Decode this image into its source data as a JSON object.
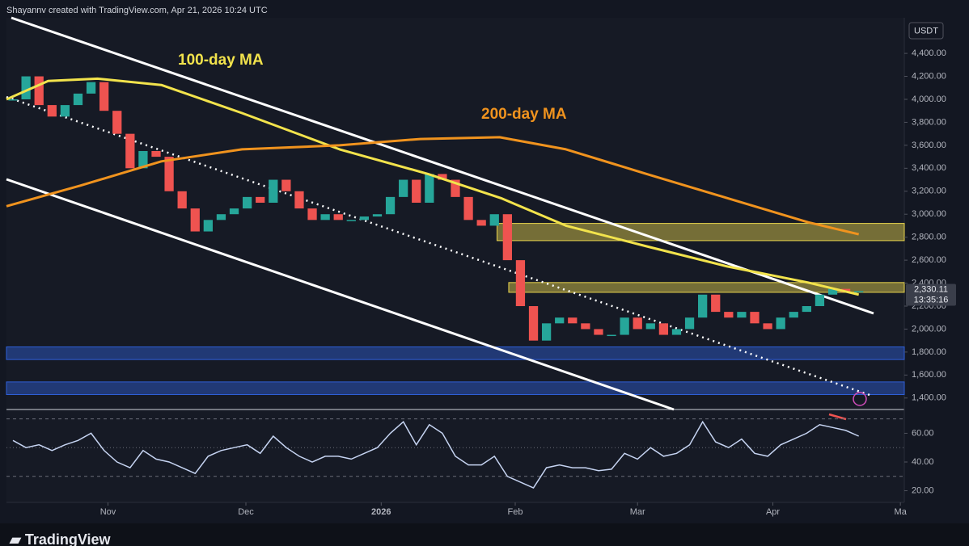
{
  "header": {
    "attribution": "Shayannv created with TradingView.com, Apr 21, 2026 10:24 UTC"
  },
  "chart_data": [
    {
      "type": "candlestick",
      "currency": "USDT",
      "xlim": [
        -0.5,
        68.5
      ],
      "xticks": [
        {
          "value": 7.3,
          "label": "Nov"
        },
        {
          "value": 17.9,
          "label": "Dec"
        },
        {
          "value": 28.3,
          "label": "2026"
        },
        {
          "value": 38.6,
          "label": "Feb"
        },
        {
          "value": 48.0,
          "label": "Mar"
        },
        {
          "value": 58.4,
          "label": "Apr"
        },
        {
          "value": 68.2,
          "label": "Ma"
        }
      ],
      "ylim": [
        1300,
        4710
      ],
      "yticks": [
        {
          "value": 1400,
          "label": "1,400.00"
        },
        {
          "value": 1600,
          "label": "1,600.00"
        },
        {
          "value": 1800,
          "label": "1,800.00"
        },
        {
          "value": 2000,
          "label": "2,000.00"
        },
        {
          "value": 2200,
          "label": "2,200.00"
        },
        {
          "value": 2400,
          "label": "2,400.00"
        },
        {
          "value": 2600,
          "label": "2,600.00"
        },
        {
          "value": 2800,
          "label": "2,800.00"
        },
        {
          "value": 3000,
          "label": "3,000.00"
        },
        {
          "value": 3200,
          "label": "3,200.00"
        },
        {
          "value": 3400,
          "label": "3,400.00"
        },
        {
          "value": 3600,
          "label": "3,600.00"
        },
        {
          "value": 3800,
          "label": "3,800.00"
        },
        {
          "value": 4000,
          "label": "4,000.00"
        },
        {
          "value": 4200,
          "label": "4,200.00"
        },
        {
          "value": 4400,
          "label": "4,400.00"
        }
      ],
      "values": [
        4000,
        4200,
        3950,
        3850,
        3950,
        4050,
        4150,
        3900,
        3700,
        3400,
        3550,
        3500,
        3200,
        3050,
        2850,
        2950,
        3000,
        3050,
        3150,
        3100,
        3300,
        3200,
        3050,
        2950,
        3000,
        2950,
        2950,
        2980,
        3000,
        3150,
        3300,
        3100,
        3350,
        3300,
        3150,
        2950,
        2900,
        3000,
        2600,
        2200,
        1900,
        2050,
        2100,
        2050,
        2000,
        1950,
        1950,
        2100,
        2000,
        2050,
        1950,
        2000,
        2100,
        2300,
        2150,
        2100,
        2150,
        2050,
        2000,
        2100,
        2150,
        2200,
        2300,
        2350,
        2320,
        2330.11
      ],
      "up_color": "#26a69a",
      "down_color": "#ef5350",
      "series": [
        {
          "name": "100-day MA",
          "color": "#f2e34c",
          "x": [
            -0.5,
            2.7,
            6.5,
            11.4,
            17.6,
            25.1,
            31.9,
            37.5,
            42.5,
            48.7,
            54.9,
            61.1,
            65.0
          ],
          "values": [
            4000,
            4160,
            4180,
            4125,
            3880,
            3565,
            3350,
            3140,
            2900,
            2720,
            2545,
            2405,
            2300
          ]
        },
        {
          "name": "200-day MA",
          "color": "#f0931e",
          "x": [
            -0.5,
            5.2,
            11.4,
            17.6,
            25.1,
            31.3,
            37.4,
            42.5,
            48.7,
            54.9,
            61.1,
            65.0
          ],
          "values": [
            3070,
            3250,
            3460,
            3565,
            3600,
            3655,
            3670,
            3565,
            3350,
            3140,
            2930,
            2825
          ]
        }
      ],
      "zones": [
        {
          "x0": 37.2,
          "from": 2770,
          "to": 2920,
          "color": "#e8d44d"
        },
        {
          "x0": 38.1,
          "from": 2320,
          "to": 2405,
          "color": "#e8d44d"
        },
        {
          "x0": -0.5,
          "from": 1735,
          "to": 1845,
          "color": "#2f5fd8"
        },
        {
          "x0": -0.5,
          "from": 1430,
          "to": 1540,
          "color": "#2f5fd8"
        }
      ],
      "price_tag": {
        "value": 2330.11,
        "label": "2,330.11",
        "timer": "13:35:16"
      }
    },
    {
      "type": "line",
      "ylim": [
        13,
        76
      ],
      "yticks": [
        {
          "value": 20,
          "label": "20.00"
        },
        {
          "value": 40,
          "label": "40.00"
        },
        {
          "value": 60,
          "label": "60.00"
        }
      ],
      "levels": [
        70,
        50,
        30
      ],
      "series": [
        {
          "color": "#c6d4f2",
          "values": [
            55,
            50,
            52,
            48,
            52,
            55,
            60,
            48,
            40,
            36,
            48,
            42,
            40,
            36,
            32,
            44,
            48,
            50,
            52,
            46,
            58,
            50,
            44,
            40,
            44,
            44,
            42,
            46,
            50,
            60,
            68,
            52,
            66,
            60,
            44,
            38,
            38,
            44,
            30,
            26,
            22,
            36,
            38,
            36,
            36,
            34,
            35,
            46,
            42,
            50,
            44,
            46,
            52,
            68,
            54,
            50,
            56,
            46,
            44,
            52,
            56,
            60,
            66,
            64,
            62,
            58
          ]
        }
      ]
    }
  ],
  "footer": {
    "logo": "TradingView"
  }
}
